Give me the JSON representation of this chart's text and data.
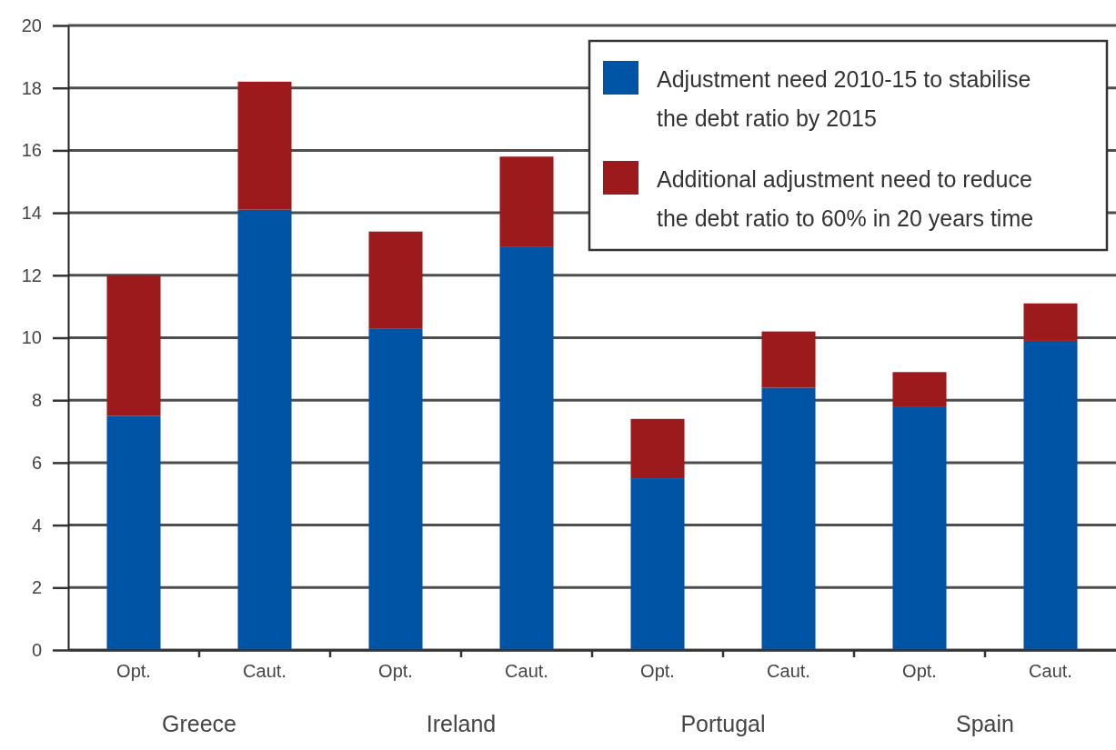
{
  "chart_data": {
    "type": "bar",
    "stacked": true,
    "categories": [
      "Opt.",
      "Caut.",
      "Opt.",
      "Caut.",
      "Opt.",
      "Caut.",
      "Opt.",
      "Caut."
    ],
    "series": [
      {
        "name": "Adjustment need 2010-15 to stabilise the debt ratio by 2015",
        "color": "#0054a6",
        "values": [
          7.5,
          14.1,
          10.3,
          12.9,
          5.5,
          8.4,
          7.8,
          9.9
        ]
      },
      {
        "name": "Additional adjustment need to reduce the debt ratio to 60% in 20 years time",
        "color": "#9c1a1c",
        "values": [
          4.5,
          4.1,
          3.1,
          2.9,
          1.9,
          1.8,
          1.1,
          1.2
        ]
      }
    ],
    "ylim": [
      0,
      20
    ],
    "yticks": [
      0,
      2,
      4,
      6,
      8,
      10,
      12,
      14,
      16,
      18,
      20
    ],
    "grid": "y",
    "legend": "top right",
    "annotations": [
      "Greece",
      "Ireland",
      "Portugal",
      "Spain"
    ]
  }
}
